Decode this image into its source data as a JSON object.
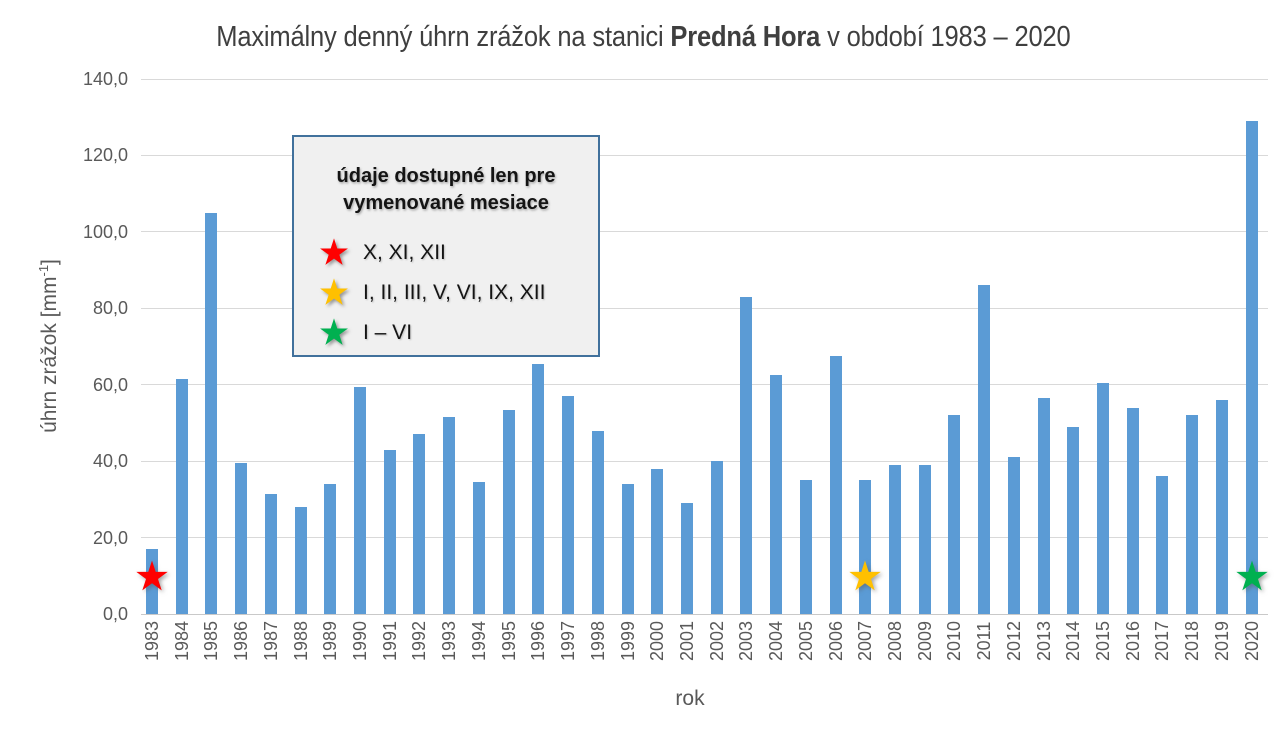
{
  "title": {
    "prefix": "Maximálny denný úhrn zrážok na stanici ",
    "station": "Predná Hora",
    "suffix": " v období 1983 – 2020"
  },
  "y_axis": {
    "title_prefix": "úhrn zrážok [mm",
    "title_sup": "-1",
    "title_suffix": "]"
  },
  "x_axis": {
    "title": "rok"
  },
  "legend": {
    "title_line1": "údaje dostupné len pre",
    "title_line2": "vymenované mesiace",
    "items": [
      {
        "label": "X, XI, XII",
        "color": "#FF0000"
      },
      {
        "label": "I, II, III, V, VI, IX, XII",
        "color": "#FFC000"
      },
      {
        "label": "I – VI",
        "color": "#00B050"
      }
    ]
  },
  "colors": {
    "bar": "#5B9BD5",
    "gridline": "#D9D9D9",
    "axis_line": "#C9C9C9",
    "axis_text": "#595959",
    "title_text": "#3F3F3F",
    "legend_border": "#41719C",
    "legend_bg": "#F0F0F0"
  },
  "chart_data": {
    "type": "bar",
    "title": "Maximálny denný úhrn zrážok na stanici Predná Hora v období 1983 – 2020",
    "xlabel": "rok",
    "ylabel": "úhrn zrážok [mm-1]",
    "ylim": [
      0,
      140
    ],
    "ytick_step": 20,
    "grid": true,
    "legend_position": "upper-left-inside",
    "yticks": [
      {
        "value": 0,
        "label": "0,0"
      },
      {
        "value": 20,
        "label": "20,0"
      },
      {
        "value": 40,
        "label": "40,0"
      },
      {
        "value": 60,
        "label": "60,0"
      },
      {
        "value": 80,
        "label": "80,0"
      },
      {
        "value": 100,
        "label": "100,0"
      },
      {
        "value": 120,
        "label": "120,0"
      },
      {
        "value": 140,
        "label": "140,0"
      }
    ],
    "categories": [
      "1983",
      "1984",
      "1985",
      "1986",
      "1987",
      "1988",
      "1989",
      "1990",
      "1991",
      "1992",
      "1993",
      "1994",
      "1995",
      "1996",
      "1997",
      "1998",
      "1999",
      "2000",
      "2001",
      "2002",
      "2003",
      "2004",
      "2005",
      "2006",
      "2007",
      "2008",
      "2009",
      "2010",
      "2011",
      "2012",
      "2013",
      "2014",
      "2015",
      "2016",
      "2017",
      "2018",
      "2019",
      "2020"
    ],
    "values": [
      17,
      61.5,
      105,
      39.5,
      31.5,
      28,
      34,
      59.5,
      43,
      47,
      51.5,
      34.5,
      53.5,
      65.5,
      57,
      48,
      34,
      38,
      29,
      40,
      83,
      62.5,
      35,
      67.5,
      35,
      39,
      39,
      52,
      86,
      41,
      56.5,
      49,
      60.5,
      54,
      36,
      52,
      56,
      129
    ],
    "annotations": [
      {
        "category": "1983",
        "marker": "star",
        "color": "#FF0000",
        "meaning": "X, XI, XII"
      },
      {
        "category": "2007",
        "marker": "star",
        "color": "#FFC000",
        "meaning": "I, II, III, V, VI, IX, XII"
      },
      {
        "category": "2020",
        "marker": "star",
        "color": "#00B050",
        "meaning": "I – VI"
      }
    ]
  }
}
